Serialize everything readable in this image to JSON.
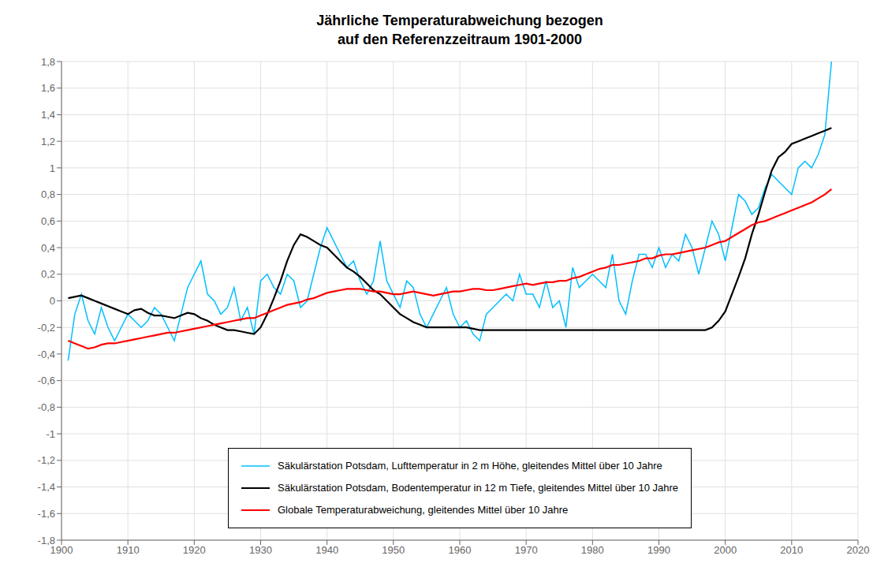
{
  "chart_data": {
    "type": "line",
    "title": "Jährliche Temperaturabweichung bezogen\nauf den Referenzzeitraum 1901-2000",
    "xlim": [
      1900,
      2020
    ],
    "ylim": [
      -1.8,
      1.8
    ],
    "xticks": [
      1900,
      1910,
      1920,
      1930,
      1940,
      1950,
      1960,
      1970,
      1980,
      1990,
      2000,
      2010,
      2020
    ],
    "yticks": [
      {
        "value": -1.8,
        "label": "-1,8"
      },
      {
        "value": -1.6,
        "label": "-1,6"
      },
      {
        "value": -1.4,
        "label": "-1,4"
      },
      {
        "value": -1.2,
        "label": "-1,2"
      },
      -1,
      {
        "value": -0.8,
        "label": "-0,8"
      },
      {
        "value": -0.6,
        "label": "-0,6"
      },
      {
        "value": -0.4,
        "label": "-0,4"
      },
      {
        "value": -0.2,
        "label": "-0,2"
      },
      0,
      {
        "value": 0.2,
        "label": "0,2"
      },
      {
        "value": 0.4,
        "label": "0,4"
      },
      {
        "value": 0.6,
        "label": "0,6"
      },
      {
        "value": 0.8,
        "label": "0,8"
      },
      1,
      {
        "value": 1.2,
        "label": "1,2"
      },
      {
        "value": 1.4,
        "label": "1,4"
      },
      {
        "value": 1.6,
        "label": "1,6"
      },
      {
        "value": 1.8,
        "label": "1,8"
      }
    ],
    "grid": true,
    "legend": "bottom",
    "x": [
      1901,
      1902,
      1903,
      1904,
      1905,
      1906,
      1907,
      1908,
      1909,
      1910,
      1911,
      1912,
      1913,
      1914,
      1915,
      1916,
      1917,
      1918,
      1919,
      1920,
      1921,
      1922,
      1923,
      1924,
      1925,
      1926,
      1927,
      1928,
      1929,
      1930,
      1931,
      1932,
      1933,
      1934,
      1935,
      1936,
      1937,
      1938,
      1939,
      1940,
      1941,
      1942,
      1943,
      1944,
      1945,
      1946,
      1947,
      1948,
      1949,
      1950,
      1951,
      1952,
      1953,
      1954,
      1955,
      1956,
      1957,
      1958,
      1959,
      1960,
      1961,
      1962,
      1963,
      1964,
      1965,
      1966,
      1967,
      1968,
      1969,
      1970,
      1971,
      1972,
      1973,
      1974,
      1975,
      1976,
      1977,
      1978,
      1979,
      1980,
      1981,
      1982,
      1983,
      1984,
      1985,
      1986,
      1987,
      1988,
      1989,
      1990,
      1991,
      1992,
      1993,
      1994,
      1995,
      1996,
      1997,
      1998,
      1999,
      2000,
      2001,
      2002,
      2003,
      2004,
      2005,
      2006,
      2007,
      2008,
      2009,
      2010,
      2011,
      2012,
      2013,
      2014,
      2015,
      2016
    ],
    "series": [
      {
        "name": "Säkulärstation Potsdam, Lufttemperatur in 2 m Höhe, gleitendes Mittel über 10 Jahre",
        "color": "#00bfff",
        "values": [
          -0.45,
          -0.1,
          0.05,
          -0.15,
          -0.25,
          -0.05,
          -0.2,
          -0.3,
          -0.2,
          -0.1,
          -0.15,
          -0.2,
          -0.15,
          -0.05,
          -0.1,
          -0.2,
          -0.3,
          -0.1,
          0.1,
          0.2,
          0.3,
          0.05,
          0.0,
          -0.1,
          -0.05,
          0.1,
          -0.15,
          -0.05,
          -0.25,
          0.15,
          0.2,
          0.1,
          0.05,
          0.2,
          0.15,
          -0.05,
          0.0,
          0.2,
          0.4,
          0.55,
          0.45,
          0.35,
          0.25,
          0.3,
          0.15,
          0.05,
          0.15,
          0.45,
          0.15,
          0.05,
          -0.05,
          0.15,
          0.1,
          -0.1,
          -0.2,
          -0.1,
          0.0,
          0.1,
          -0.1,
          -0.2,
          -0.15,
          -0.25,
          -0.3,
          -0.1,
          -0.05,
          0.0,
          0.05,
          0.0,
          0.2,
          0.05,
          0.05,
          -0.05,
          0.15,
          -0.05,
          0.0,
          -0.2,
          0.25,
          0.1,
          0.15,
          0.2,
          0.15,
          0.1,
          0.35,
          0.0,
          -0.1,
          0.15,
          0.35,
          0.35,
          0.25,
          0.4,
          0.25,
          0.35,
          0.3,
          0.5,
          0.4,
          0.2,
          0.4,
          0.6,
          0.5,
          0.3,
          0.55,
          0.8,
          0.75,
          0.65,
          0.7,
          0.85,
          0.95,
          0.9,
          0.85,
          0.8,
          1.0,
          1.05,
          1.0,
          1.1,
          1.25,
          1.8
        ]
      },
      {
        "name": "Säkulärstation Potsdam, Bodentemperatur in 12 m Tiefe, gleitendes Mittel über 10 Jahre",
        "color": "#000000",
        "values": [
          0.02,
          0.03,
          0.04,
          0.02,
          0.0,
          -0.02,
          -0.04,
          -0.06,
          -0.08,
          -0.1,
          -0.07,
          -0.06,
          -0.09,
          -0.11,
          -0.11,
          -0.12,
          -0.13,
          -0.11,
          -0.09,
          -0.1,
          -0.13,
          -0.15,
          -0.18,
          -0.2,
          -0.22,
          -0.22,
          -0.23,
          -0.24,
          -0.25,
          -0.2,
          -0.1,
          0.02,
          0.15,
          0.3,
          0.42,
          0.5,
          0.48,
          0.45,
          0.42,
          0.4,
          0.35,
          0.3,
          0.25,
          0.22,
          0.18,
          0.13,
          0.08,
          0.05,
          0.0,
          -0.05,
          -0.1,
          -0.13,
          -0.16,
          -0.18,
          -0.2,
          -0.2,
          -0.2,
          -0.2,
          -0.2,
          -0.2,
          -0.2,
          -0.21,
          -0.22,
          -0.22,
          -0.22,
          -0.22,
          -0.22,
          -0.22,
          -0.22,
          -0.22,
          -0.22,
          -0.22,
          -0.22,
          -0.22,
          -0.22,
          -0.22,
          -0.22,
          -0.22,
          -0.22,
          -0.22,
          -0.22,
          -0.22,
          -0.22,
          -0.22,
          -0.22,
          -0.22,
          -0.22,
          -0.22,
          -0.22,
          -0.22,
          -0.22,
          -0.22,
          -0.22,
          -0.22,
          -0.22,
          -0.22,
          -0.22,
          -0.2,
          -0.15,
          -0.08,
          0.05,
          0.18,
          0.32,
          0.5,
          0.65,
          0.82,
          0.98,
          1.08,
          1.12,
          1.18,
          1.2,
          1.22,
          1.24,
          1.26,
          1.28,
          1.3
        ]
      },
      {
        "name": "Globale Temperaturabweichung, gleitendes Mittel über 10 Jahre",
        "color": "#ff0000",
        "values": [
          -0.3,
          -0.32,
          -0.34,
          -0.36,
          -0.35,
          -0.33,
          -0.32,
          -0.32,
          -0.31,
          -0.3,
          -0.29,
          -0.28,
          -0.27,
          -0.26,
          -0.25,
          -0.24,
          -0.24,
          -0.23,
          -0.22,
          -0.21,
          -0.2,
          -0.19,
          -0.18,
          -0.17,
          -0.16,
          -0.15,
          -0.14,
          -0.13,
          -0.13,
          -0.11,
          -0.09,
          -0.07,
          -0.05,
          -0.03,
          -0.02,
          -0.01,
          0.01,
          0.02,
          0.04,
          0.06,
          0.07,
          0.08,
          0.09,
          0.09,
          0.09,
          0.08,
          0.07,
          0.07,
          0.06,
          0.05,
          0.05,
          0.06,
          0.07,
          0.06,
          0.05,
          0.04,
          0.05,
          0.06,
          0.07,
          0.07,
          0.08,
          0.09,
          0.09,
          0.08,
          0.08,
          0.09,
          0.1,
          0.11,
          0.12,
          0.13,
          0.12,
          0.13,
          0.14,
          0.14,
          0.15,
          0.15,
          0.17,
          0.18,
          0.2,
          0.22,
          0.24,
          0.25,
          0.27,
          0.27,
          0.28,
          0.29,
          0.3,
          0.32,
          0.32,
          0.34,
          0.35,
          0.35,
          0.36,
          0.37,
          0.38,
          0.39,
          0.4,
          0.42,
          0.44,
          0.45,
          0.48,
          0.51,
          0.54,
          0.57,
          0.59,
          0.6,
          0.62,
          0.64,
          0.66,
          0.68,
          0.7,
          0.72,
          0.74,
          0.77,
          0.8,
          0.84
        ]
      }
    ]
  }
}
